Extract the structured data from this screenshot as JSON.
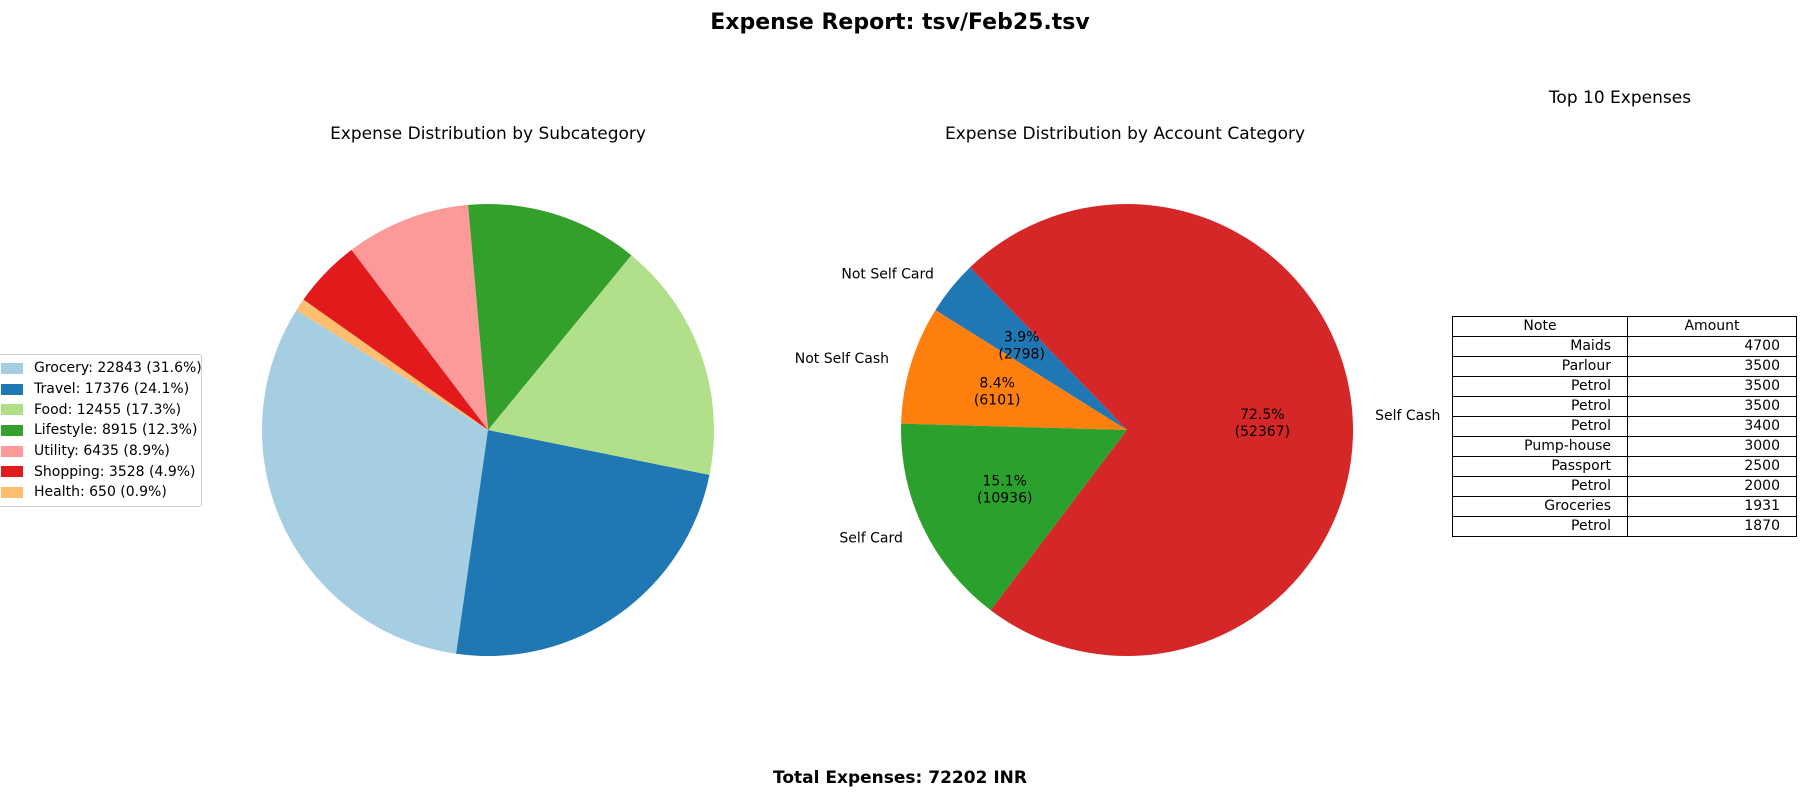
{
  "title": "Expense Report: tsv/Feb25.tsv",
  "footer": "Total Expenses: 72202 INR",
  "chart_data": [
    {
      "type": "pie",
      "title": "Expense Distribution by Subcategory",
      "categories": [
        "Grocery",
        "Travel",
        "Food",
        "Lifestyle",
        "Utility",
        "Shopping",
        "Health"
      ],
      "values": [
        22843,
        17376,
        12455,
        8915,
        6435,
        3528,
        650
      ],
      "percentages": [
        31.6,
        24.1,
        17.3,
        12.3,
        8.9,
        4.9,
        0.9
      ],
      "legend_labels": [
        "Grocery: 22843 (31.6%)",
        "Travel: 17376 (24.1%)",
        "Food: 12455 (17.3%)",
        "Lifestyle: 8915 (12.3%)",
        "Utility: 6435 (8.9%)",
        "Shopping: 3528 (4.9%)",
        "Health: 650 (0.9%)"
      ],
      "colors": [
        "#a6cee3",
        "#1f78b4",
        "#b2df8a",
        "#33a02c",
        "#fb9a99",
        "#e31a1c",
        "#fdbf6f"
      ],
      "legend_position": "left"
    },
    {
      "type": "pie",
      "title": "Expense Distribution by Account Category",
      "categories": [
        "Not Self Card",
        "Not Self Cash",
        "Self Card",
        "Self Cash"
      ],
      "values": [
        2798,
        6101,
        10936,
        52367
      ],
      "percent_labels": [
        "3.9%",
        "8.4%",
        "15.1%",
        "72.5%"
      ],
      "value_labels": [
        "(2798)",
        "(6101)",
        "(10936)",
        "(52367)"
      ],
      "colors": [
        "#1f77b4",
        "#ff7f0e",
        "#2ca02c",
        "#d62728"
      ]
    },
    {
      "type": "table",
      "title": "Top 10 Expenses",
      "columns": [
        "Note",
        "Amount"
      ],
      "rows": [
        [
          "Maids",
          "4700"
        ],
        [
          "Parlour",
          "3500"
        ],
        [
          "Petrol",
          "3500"
        ],
        [
          "Petrol",
          "3500"
        ],
        [
          "Petrol",
          "3400"
        ],
        [
          "Pump-house",
          "3000"
        ],
        [
          "Passport",
          "2500"
        ],
        [
          "Petrol",
          "2000"
        ],
        [
          "Groceries",
          "1931"
        ],
        [
          "Petrol",
          "1870"
        ]
      ]
    }
  ]
}
